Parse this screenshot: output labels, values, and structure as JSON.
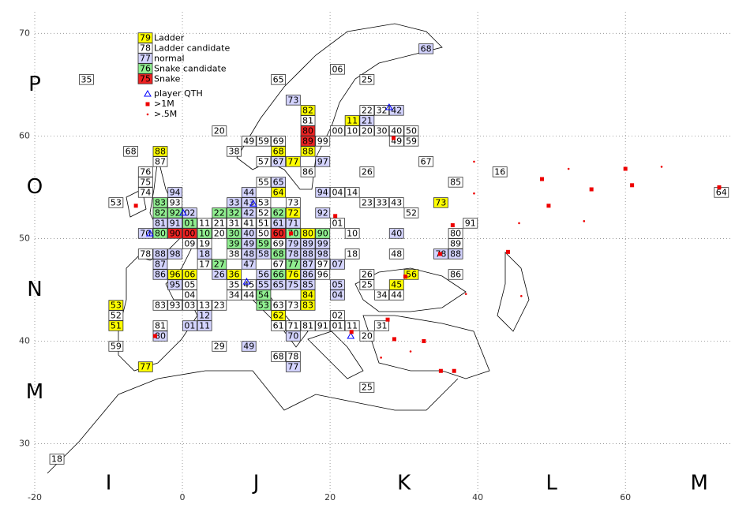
{
  "chart_data": {
    "type": "map",
    "xlim": [
      -20,
      74.2
    ],
    "ylim": [
      25.2,
      72.1
    ],
    "xticks": [
      -20,
      0,
      20,
      40,
      60
    ],
    "yticks": [
      30,
      40,
      50,
      60,
      70
    ],
    "grid": true,
    "field_labels": {
      "x": [
        {
          "value": -10,
          "label": "I"
        },
        {
          "value": 10,
          "label": "J"
        },
        {
          "value": 30,
          "label": "K"
        },
        {
          "value": 50,
          "label": "L"
        },
        {
          "value": 70,
          "label": "M"
        }
      ],
      "y": [
        {
          "value": 65,
          "label": "P"
        },
        {
          "value": 55,
          "label": "O"
        },
        {
          "value": 45,
          "label": "N"
        },
        {
          "value": 35,
          "label": "M"
        }
      ]
    },
    "legend": [
      {
        "sample": "79",
        "label": "Ladder",
        "color": "#ffff00"
      },
      {
        "sample": "78",
        "label": "Ladder candidate",
        "color": "#ffffff"
      },
      {
        "sample": "77",
        "label": "normal",
        "color": "#d4d4ff"
      },
      {
        "sample": "76",
        "label": "Snake candidate",
        "color": "#90ee90"
      },
      {
        "sample": "75",
        "label": "Snake",
        "color": "#ee2222"
      }
    ],
    "markers": [
      {
        "label": "player QTH",
        "color": "#0000ff",
        "shape": "triangle",
        "points": [
          [
            28,
            62.8
          ],
          [
            9.6,
            53.4
          ],
          [
            0.1,
            52.5
          ],
          [
            22.8,
            40.5
          ],
          [
            -4.4,
            50.5
          ],
          [
            8.7,
            45.8
          ]
        ]
      },
      {
        "label": ">1M",
        "color": "#ee0000",
        "shape": "square",
        "points": [
          [
            60,
            56.8
          ],
          [
            48.7,
            55.8
          ],
          [
            55.4,
            54.8
          ],
          [
            60.9,
            55.2
          ],
          [
            49.6,
            53.2
          ],
          [
            44.1,
            48.7
          ],
          [
            34.9,
            48.5
          ],
          [
            30.2,
            46.3
          ],
          [
            32.7,
            40
          ],
          [
            36.8,
            37.1
          ],
          [
            35,
            37.1
          ],
          [
            -6.3,
            53.2
          ],
          [
            -3.7,
            40.5
          ],
          [
            27.8,
            42.1
          ],
          [
            28.7,
            40.2
          ],
          [
            28.6,
            59.8
          ],
          [
            72.7,
            55
          ],
          [
            36.6,
            51.3
          ],
          [
            20.7,
            52.2
          ],
          [
            22.9,
            40.9
          ],
          [
            14.7,
            50.5
          ]
        ]
      },
      {
        "label": ">.5M",
        "color": "#ee0000",
        "shape": "dot",
        "points": [
          [
            39.5,
            57.5
          ],
          [
            52.3,
            56.8
          ],
          [
            64.9,
            57
          ],
          [
            54.4,
            51.7
          ],
          [
            45.6,
            51.5
          ],
          [
            39.5,
            54.4
          ],
          [
            45.9,
            44.4
          ],
          [
            38.4,
            44.6
          ],
          [
            30.9,
            39
          ],
          [
            26.9,
            38.4
          ]
        ]
      }
    ],
    "squares": [
      [
        "35",
        -13,
        65.5,
        1
      ],
      [
        "65",
        13,
        65.5,
        1
      ],
      [
        "06",
        21,
        66.5,
        1
      ],
      [
        "25",
        25,
        65.5,
        1
      ],
      [
        "68",
        33,
        68.5,
        2
      ],
      [
        "73",
        15,
        63.5,
        2
      ],
      [
        "82",
        17,
        62.5,
        0
      ],
      [
        "22",
        25,
        62.5,
        1
      ],
      [
        "32",
        27,
        62.5,
        1
      ],
      [
        "42",
        29,
        62.5,
        2
      ],
      [
        "81",
        17,
        61.5,
        1
      ],
      [
        "11",
        23,
        61.5,
        0
      ],
      [
        "21",
        25,
        61.5,
        2
      ],
      [
        "20",
        5,
        60.5,
        1
      ],
      [
        "80",
        17,
        60.5,
        4
      ],
      [
        "00",
        21,
        60.5,
        1
      ],
      [
        "10",
        23,
        60.5,
        1
      ],
      [
        "20",
        25,
        60.5,
        1
      ],
      [
        "30",
        27,
        60.5,
        1
      ],
      [
        "40",
        29,
        60.5,
        1
      ],
      [
        "50",
        31,
        60.5,
        1
      ],
      [
        "49",
        9,
        59.5,
        1
      ],
      [
        "59",
        11,
        59.5,
        1
      ],
      [
        "69",
        13,
        59.5,
        1
      ],
      [
        "89",
        17,
        59.5,
        4
      ],
      [
        "99",
        19,
        59.5,
        1
      ],
      [
        "49",
        29,
        59.5,
        1
      ],
      [
        "59",
        31,
        59.5,
        1
      ],
      [
        "68",
        -7,
        58.5,
        1
      ],
      [
        "88",
        -3,
        58.5,
        0
      ],
      [
        "38",
        7,
        58.5,
        1
      ],
      [
        "68",
        13,
        58.5,
        0
      ],
      [
        "88",
        17,
        58.5,
        0
      ],
      [
        "87",
        -3,
        57.5,
        1
      ],
      [
        "57",
        11,
        57.5,
        1
      ],
      [
        "67",
        13,
        57.5,
        2
      ],
      [
        "77",
        15,
        57.5,
        0
      ],
      [
        "97",
        19,
        57.5,
        2
      ],
      [
        "67",
        33,
        57.5,
        1
      ],
      [
        "76",
        -5,
        56.5,
        1
      ],
      [
        "86",
        17,
        56.5,
        1
      ],
      [
        "26",
        25,
        56.5,
        1
      ],
      [
        "16",
        43,
        56.5,
        1
      ],
      [
        "75",
        -5,
        55.5,
        1
      ],
      [
        "55",
        11,
        55.5,
        1
      ],
      [
        "65",
        13,
        55.5,
        2
      ],
      [
        "85",
        37,
        55.5,
        1
      ],
      [
        "74",
        -5,
        54.5,
        1
      ],
      [
        "94",
        -1,
        54.5,
        2
      ],
      [
        "44",
        9,
        54.5,
        2
      ],
      [
        "64",
        13,
        54.5,
        0
      ],
      [
        "94",
        19,
        54.5,
        2
      ],
      [
        "04",
        21,
        54.5,
        1
      ],
      [
        "14",
        23,
        54.5,
        1
      ],
      [
        "64",
        73,
        54.5,
        1
      ],
      [
        "53",
        -9,
        53.5,
        1
      ],
      [
        "83",
        -3,
        53.5,
        3
      ],
      [
        "93",
        -1,
        53.5,
        1
      ],
      [
        "33",
        7,
        53.5,
        2
      ],
      [
        "43",
        9,
        53.5,
        2
      ],
      [
        "53",
        11,
        53.5,
        1
      ],
      [
        "73",
        15,
        53.5,
        1
      ],
      [
        "23",
        25,
        53.5,
        1
      ],
      [
        "33",
        27,
        53.5,
        1
      ],
      [
        "43",
        29,
        53.5,
        1
      ],
      [
        "73",
        35,
        53.5,
        0
      ],
      [
        "82",
        -3,
        52.5,
        3
      ],
      [
        "92",
        -1,
        52.5,
        3
      ],
      [
        "02",
        1,
        52.5,
        2
      ],
      [
        "22",
        5,
        52.5,
        3
      ],
      [
        "32",
        7,
        52.5,
        3
      ],
      [
        "42",
        9,
        52.5,
        2
      ],
      [
        "52",
        11,
        52.5,
        1
      ],
      [
        "62",
        13,
        52.5,
        3
      ],
      [
        "72",
        15,
        52.5,
        0
      ],
      [
        "92",
        19,
        52.5,
        2
      ],
      [
        "52",
        31,
        52.5,
        1
      ],
      [
        "81",
        -3,
        51.5,
        2
      ],
      [
        "91",
        -1,
        51.5,
        2
      ],
      [
        "01",
        1,
        51.5,
        3
      ],
      [
        "11",
        3,
        51.5,
        1
      ],
      [
        "21",
        5,
        51.5,
        1
      ],
      [
        "31",
        7,
        51.5,
        1
      ],
      [
        "41",
        9,
        51.5,
        1
      ],
      [
        "51",
        11,
        51.5,
        1
      ],
      [
        "61",
        13,
        51.5,
        2
      ],
      [
        "71",
        15,
        51.5,
        2
      ],
      [
        "01",
        21,
        51.5,
        1
      ],
      [
        "91",
        39,
        51.5,
        1
      ],
      [
        "70",
        -5,
        50.5,
        2
      ],
      [
        "80",
        -3,
        50.5,
        3
      ],
      [
        "90",
        -1,
        50.5,
        4
      ],
      [
        "00",
        1,
        50.5,
        4
      ],
      [
        "10",
        3,
        50.5,
        3
      ],
      [
        "20",
        5,
        50.5,
        1
      ],
      [
        "30",
        7,
        50.5,
        3
      ],
      [
        "40",
        9,
        50.5,
        2
      ],
      [
        "50",
        11,
        50.5,
        1
      ],
      [
        "60",
        13,
        50.5,
        4
      ],
      [
        "70",
        15,
        50.5,
        3
      ],
      [
        "80",
        17,
        50.5,
        0
      ],
      [
        "90",
        19,
        50.5,
        3
      ],
      [
        "10",
        23,
        50.5,
        1
      ],
      [
        "40",
        29,
        50.5,
        2
      ],
      [
        "80",
        37,
        50.5,
        1
      ],
      [
        "09",
        1,
        49.5,
        1
      ],
      [
        "19",
        3,
        49.5,
        1
      ],
      [
        "39",
        7,
        49.5,
        3
      ],
      [
        "49",
        9,
        49.5,
        2
      ],
      [
        "59",
        11,
        49.5,
        3
      ],
      [
        "69",
        13,
        49.5,
        1
      ],
      [
        "79",
        15,
        49.5,
        2
      ],
      [
        "89",
        17,
        49.5,
        2
      ],
      [
        "99",
        19,
        49.5,
        2
      ],
      [
        "89",
        37,
        49.5,
        1
      ],
      [
        "78",
        -5,
        48.5,
        1
      ],
      [
        "88",
        -3,
        48.5,
        2
      ],
      [
        "98",
        -1,
        48.5,
        2
      ],
      [
        "18",
        3,
        48.5,
        2
      ],
      [
        "38",
        7,
        48.5,
        1
      ],
      [
        "48",
        9,
        48.5,
        2
      ],
      [
        "58",
        11,
        48.5,
        2
      ],
      [
        "68",
        13,
        48.5,
        3
      ],
      [
        "78",
        15,
        48.5,
        2
      ],
      [
        "88",
        17,
        48.5,
        2
      ],
      [
        "98",
        19,
        48.5,
        2
      ],
      [
        "18",
        23,
        48.5,
        1
      ],
      [
        "48",
        29,
        48.5,
        1
      ],
      [
        "78",
        35,
        48.5,
        2
      ],
      [
        "88",
        37,
        48.5,
        2
      ],
      [
        "87",
        -3,
        47.5,
        2
      ],
      [
        "17",
        3,
        47.5,
        1
      ],
      [
        "27",
        5,
        47.5,
        3
      ],
      [
        "47",
        9,
        47.5,
        2
      ],
      [
        "67",
        13,
        47.5,
        1
      ],
      [
        "77",
        15,
        47.5,
        3
      ],
      [
        "87",
        17,
        47.5,
        2
      ],
      [
        "97",
        19,
        47.5,
        1
      ],
      [
        "07",
        21,
        47.5,
        2
      ],
      [
        "86",
        -3,
        46.5,
        2
      ],
      [
        "96",
        -1,
        46.5,
        0
      ],
      [
        "06",
        1,
        46.5,
        0
      ],
      [
        "26",
        5,
        46.5,
        2
      ],
      [
        "36",
        7,
        46.5,
        0
      ],
      [
        "56",
        11,
        46.5,
        2
      ],
      [
        "66",
        13,
        46.5,
        3
      ],
      [
        "76",
        15,
        46.5,
        0
      ],
      [
        "86",
        17,
        46.5,
        2
      ],
      [
        "96",
        19,
        46.5,
        1
      ],
      [
        "26",
        25,
        46.5,
        1
      ],
      [
        "56",
        31,
        46.5,
        0
      ],
      [
        "86",
        37,
        46.5,
        1
      ],
      [
        "95",
        -1,
        45.5,
        2
      ],
      [
        "05",
        1,
        45.5,
        1
      ],
      [
        "35",
        7,
        45.5,
        1
      ],
      [
        "45",
        9,
        45.5,
        1
      ],
      [
        "55",
        11,
        45.5,
        2
      ],
      [
        "65",
        13,
        45.5,
        2
      ],
      [
        "75",
        15,
        45.5,
        2
      ],
      [
        "85",
        17,
        45.5,
        2
      ],
      [
        "05",
        21,
        45.5,
        2
      ],
      [
        "25",
        25,
        45.5,
        1
      ],
      [
        "45",
        29,
        45.5,
        0
      ],
      [
        "04",
        1,
        44.5,
        1
      ],
      [
        "34",
        7,
        44.5,
        1
      ],
      [
        "44",
        9,
        44.5,
        1
      ],
      [
        "54",
        11,
        44.5,
        3
      ],
      [
        "84",
        17,
        44.5,
        0
      ],
      [
        "04",
        21,
        44.5,
        2
      ],
      [
        "34",
        27,
        44.5,
        1
      ],
      [
        "44",
        29,
        44.5,
        1
      ],
      [
        "53",
        -9,
        43.5,
        0
      ],
      [
        "83",
        -3,
        43.5,
        1
      ],
      [
        "93",
        -1,
        43.5,
        1
      ],
      [
        "03",
        1,
        43.5,
        1
      ],
      [
        "13",
        3,
        43.5,
        1
      ],
      [
        "23",
        5,
        43.5,
        1
      ],
      [
        "53",
        11,
        43.5,
        3
      ],
      [
        "63",
        13,
        43.5,
        1
      ],
      [
        "73",
        15,
        43.5,
        1
      ],
      [
        "83",
        17,
        43.5,
        0
      ],
      [
        "52",
        -9,
        42.5,
        1
      ],
      [
        "12",
        3,
        42.5,
        2
      ],
      [
        "62",
        13,
        42.5,
        0
      ],
      [
        "02",
        21,
        42.5,
        1
      ],
      [
        "51",
        -9,
        41.5,
        0
      ],
      [
        "81",
        -3,
        41.5,
        1
      ],
      [
        "01",
        1,
        41.5,
        2
      ],
      [
        "11",
        3,
        41.5,
        2
      ],
      [
        "61",
        13,
        41.5,
        1
      ],
      [
        "71",
        15,
        41.5,
        1
      ],
      [
        "81",
        17,
        41.5,
        1
      ],
      [
        "91",
        19,
        41.5,
        1
      ],
      [
        "01",
        21,
        41.5,
        1
      ],
      [
        "11",
        23,
        41.5,
        1
      ],
      [
        "31",
        27,
        41.5,
        1
      ],
      [
        "80",
        -3,
        40.5,
        2
      ],
      [
        "70",
        15,
        40.5,
        2
      ],
      [
        "20",
        25,
        40.5,
        1
      ],
      [
        "59",
        -9,
        39.5,
        1
      ],
      [
        "29",
        5,
        39.5,
        1
      ],
      [
        "49",
        9,
        39.5,
        2
      ],
      [
        "68",
        13,
        38.5,
        1
      ],
      [
        "78",
        15,
        38.5,
        1
      ],
      [
        "77",
        -5,
        37.5,
        0
      ],
      [
        "77",
        15,
        37.5,
        2
      ],
      [
        "25",
        25,
        35.5,
        1
      ],
      [
        "18",
        -17,
        28.5,
        1
      ]
    ]
  }
}
